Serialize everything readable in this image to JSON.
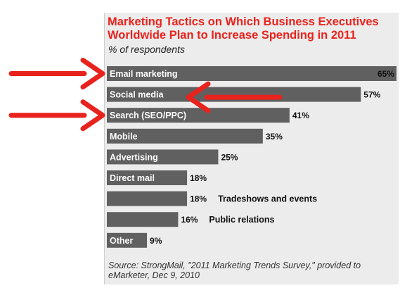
{
  "chart_data": {
    "type": "bar",
    "orientation": "horizontal",
    "title": "Marketing Tactics on Which Business Executives Worldwide Plan to Increase Spending in 2011",
    "subtitle": "% of respondents",
    "source": "Source: StrongMail, \"2011 Marketing Trends Survey,\" provided to eMarketer, Dec 9, 2010",
    "xlim": [
      0,
      65
    ],
    "grid": false,
    "legend": "none",
    "bar_color": "#606060",
    "title_color": "#e8231d",
    "arrow_color": "#e8231d",
    "bars": [
      {
        "category": "Email marketing",
        "value": 65,
        "value_label": "65%",
        "inside_label": "Email marketing",
        "outside_label": ""
      },
      {
        "category": "Social media",
        "value": 57,
        "value_label": "57%",
        "inside_label": "Social media",
        "outside_label": ""
      },
      {
        "category": "Search (SEO/PPC)",
        "value": 41,
        "value_label": "41%",
        "inside_label": "Search (SEO/PPC)",
        "outside_label": ""
      },
      {
        "category": "Mobile",
        "value": 35,
        "value_label": "35%",
        "inside_label": "Mobile",
        "outside_label": ""
      },
      {
        "category": "Advertising",
        "value": 25,
        "value_label": "25%",
        "inside_label": "Advertising",
        "outside_label": ""
      },
      {
        "category": "Direct mail",
        "value": 18,
        "value_label": "18%",
        "inside_label": "Direct mail",
        "outside_label": ""
      },
      {
        "category": "Tradeshows and events",
        "value": 18,
        "value_label": "18%",
        "inside_label": "",
        "outside_label": "Tradeshows and events"
      },
      {
        "category": "Public relations",
        "value": 16,
        "value_label": "16%",
        "inside_label": "",
        "outside_label": "Public relations"
      },
      {
        "category": "Other",
        "value": 9,
        "value_label": "9%",
        "inside_label": "Other",
        "outside_label": ""
      }
    ],
    "annotations": [
      {
        "type": "arrow",
        "direction": "right",
        "target": "Email marketing"
      },
      {
        "type": "arrow",
        "direction": "left",
        "target": "Social media"
      },
      {
        "type": "arrow",
        "direction": "right",
        "target": "Search (SEO/PPC)"
      }
    ]
  }
}
